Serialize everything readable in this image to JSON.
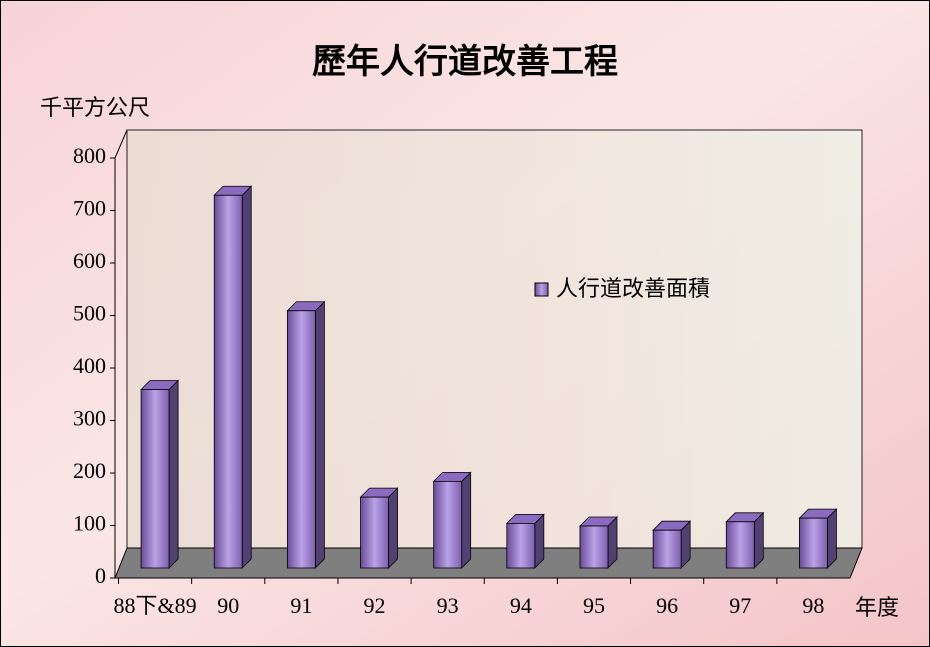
{
  "chart_data": {
    "type": "bar3d",
    "title": "歷年人行道改善工程",
    "y_axis_label": "千平方公尺",
    "x_axis_label": "年度",
    "categories": [
      "88下&89",
      "90",
      "91",
      "92",
      "93",
      "94",
      "95",
      "96",
      "97",
      "98"
    ],
    "series": [
      {
        "name": "人行道改善面積",
        "color": "#8a6bc0",
        "values": [
          340,
          710,
          490,
          135,
          165,
          85,
          80,
          72,
          88,
          95
        ]
      }
    ],
    "ylim": [
      0,
      800
    ],
    "yticks": [
      0,
      100,
      200,
      300,
      400,
      500,
      600,
      700,
      800
    ],
    "grid": false,
    "legend": "right"
  }
}
